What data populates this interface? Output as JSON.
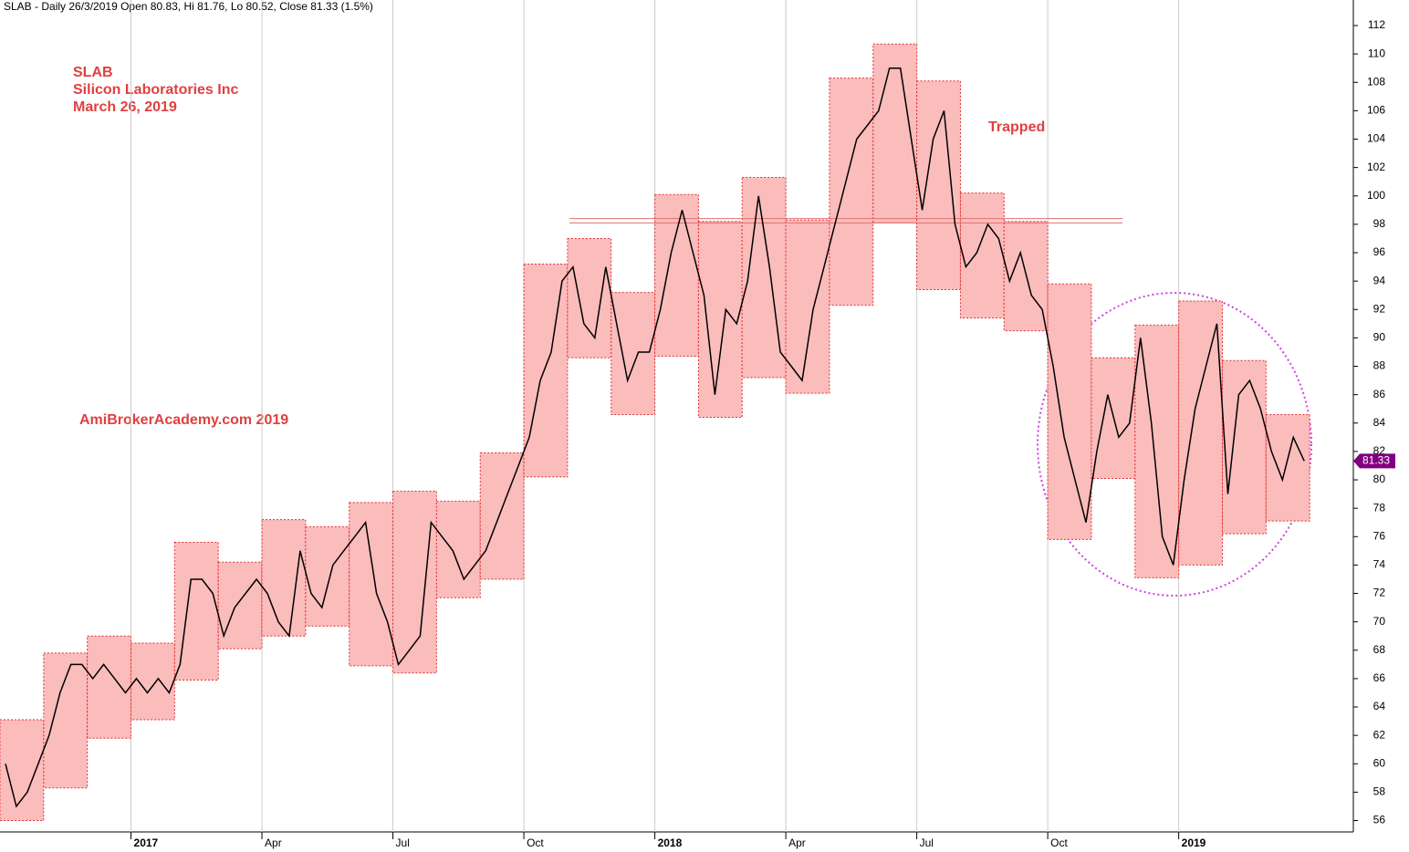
{
  "chart_data": {
    "type": "stock",
    "title": "SLAB - Daily 26/3/2019 Open 80.83, Hi 81.76, Lo 80.52, Close 81.33 (1.5%)",
    "annotations": [
      {
        "text": "SLAB"
      },
      {
        "text": "Silicon Laboratories Inc"
      },
      {
        "text": "March 26, 2019"
      },
      {
        "text": "AmiBrokerAcademy.com 2019"
      },
      {
        "text": "Trapped"
      }
    ],
    "box_color": "#fbbcbc",
    "box_border": "#e03030",
    "line_color": "#000000",
    "last_price": 81.33,
    "last_price_color": "#800080",
    "reference_lines": [
      98.4,
      98.1
    ],
    "xlim": [
      "2016-10",
      "2019-05"
    ],
    "ylim": [
      55.2,
      113.8
    ],
    "yticks": [
      56,
      58,
      60,
      62,
      64,
      66,
      68,
      70,
      72,
      74,
      76,
      78,
      80,
      82,
      84,
      86,
      88,
      90,
      92,
      94,
      96,
      98,
      100,
      102,
      104,
      106,
      108,
      110,
      112
    ],
    "xticks": [
      {
        "value": "2017-01",
        "label": "2017"
      },
      {
        "value": "2017-04",
        "label": "Apr"
      },
      {
        "value": "2017-07",
        "label": "Jul"
      },
      {
        "value": "2017-10",
        "label": "Oct"
      },
      {
        "value": "2018-01",
        "label": "2018"
      },
      {
        "value": "2018-04",
        "label": "Apr"
      },
      {
        "value": "2018-07",
        "label": "Jul"
      },
      {
        "value": "2018-10",
        "label": "Oct"
      },
      {
        "value": "2019-01",
        "label": "2019"
      }
    ],
    "grid": true,
    "months": [
      {
        "month": "2016-10",
        "high": 63.1,
        "low": 56,
        "closes": [
          60,
          57,
          58,
          60
        ]
      },
      {
        "month": "2016-11",
        "high": 67.8,
        "low": 58.3,
        "closes": [
          62,
          65,
          67,
          67
        ]
      },
      {
        "month": "2016-12",
        "high": 69.0,
        "low": 61.8,
        "closes": [
          66,
          67,
          66,
          65
        ]
      },
      {
        "month": "2017-01",
        "high": 68.5,
        "low": 63.1,
        "closes": [
          66,
          65,
          66,
          65
        ]
      },
      {
        "month": "2017-02",
        "high": 75.6,
        "low": 65.9,
        "closes": [
          67,
          73,
          73,
          72
        ]
      },
      {
        "month": "2017-03",
        "high": 74.2,
        "low": 68.1,
        "closes": [
          69,
          71,
          72,
          73
        ]
      },
      {
        "month": "2017-04",
        "high": 77.2,
        "low": 69.0,
        "closes": [
          72,
          70,
          69,
          75
        ]
      },
      {
        "month": "2017-05",
        "high": 76.7,
        "low": 69.7,
        "closes": [
          72,
          71,
          74,
          75
        ]
      },
      {
        "month": "2017-06",
        "high": 78.4,
        "low": 66.9,
        "closes": [
          76,
          77,
          72,
          70
        ]
      },
      {
        "month": "2017-07",
        "high": 79.2,
        "low": 66.4,
        "closes": [
          67,
          68,
          69,
          77
        ]
      },
      {
        "month": "2017-08",
        "high": 78.5,
        "low": 71.7,
        "closes": [
          76,
          75,
          73,
          74
        ]
      },
      {
        "month": "2017-09",
        "high": 81.9,
        "low": 73.0,
        "closes": [
          75,
          77,
          79,
          81
        ]
      },
      {
        "month": "2017-10",
        "high": 95.2,
        "low": 80.2,
        "closes": [
          83,
          87,
          89,
          94
        ]
      },
      {
        "month": "2017-11",
        "high": 97.0,
        "low": 88.6,
        "closes": [
          95,
          91,
          90,
          95
        ]
      },
      {
        "month": "2017-12",
        "high": 93.2,
        "low": 84.6,
        "closes": [
          91,
          87,
          89,
          89
        ]
      },
      {
        "month": "2018-01",
        "high": 100.1,
        "low": 88.7,
        "closes": [
          92,
          96,
          99,
          96
        ]
      },
      {
        "month": "2018-02",
        "high": 98.2,
        "low": 84.4,
        "closes": [
          93,
          86,
          92,
          91
        ]
      },
      {
        "month": "2018-03",
        "high": 101.3,
        "low": 87.2,
        "closes": [
          94,
          100,
          95,
          89
        ]
      },
      {
        "month": "2018-04",
        "high": 98.3,
        "low": 86.1,
        "closes": [
          88,
          87,
          92,
          95
        ]
      },
      {
        "month": "2018-05",
        "high": 108.3,
        "low": 92.3,
        "closes": [
          98,
          101,
          104,
          105
        ]
      },
      {
        "month": "2018-06",
        "high": 110.7,
        "low": 98.1,
        "closes": [
          106,
          109,
          109,
          104
        ]
      },
      {
        "month": "2018-07",
        "high": 108.1,
        "low": 93.4,
        "closes": [
          99,
          104,
          106,
          98
        ]
      },
      {
        "month": "2018-08",
        "high": 100.2,
        "low": 91.4,
        "closes": [
          95,
          96,
          98,
          97
        ]
      },
      {
        "month": "2018-09",
        "high": 98.2,
        "low": 90.5,
        "closes": [
          94,
          96,
          93,
          92
        ]
      },
      {
        "month": "2018-10",
        "high": 93.8,
        "low": 75.8,
        "closes": [
          88,
          83,
          80,
          77
        ]
      },
      {
        "month": "2018-11",
        "high": 88.6,
        "low": 80.1,
        "closes": [
          82,
          86,
          83,
          84
        ]
      },
      {
        "month": "2018-12",
        "high": 90.9,
        "low": 73.1,
        "closes": [
          90,
          84,
          76,
          74
        ]
      },
      {
        "month": "2019-01",
        "high": 92.6,
        "low": 74.0,
        "closes": [
          80,
          85,
          88,
          91
        ]
      },
      {
        "month": "2019-02",
        "high": 88.4,
        "low": 76.2,
        "closes": [
          79,
          86,
          87,
          85
        ]
      },
      {
        "month": "2019-03",
        "high": 84.6,
        "low": 77.1,
        "closes": [
          82,
          80,
          83,
          81.33
        ]
      }
    ]
  }
}
